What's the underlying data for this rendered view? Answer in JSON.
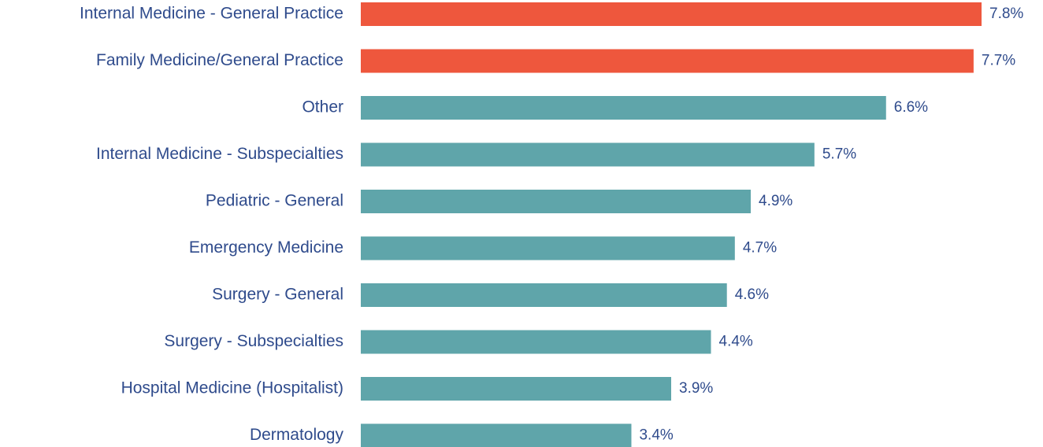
{
  "chart_data": {
    "type": "barh",
    "categories": [
      "Internal Medicine - General Practice",
      "Family Medicine/General Practice",
      "Other",
      "Internal Medicine - Subspecialties",
      "Pediatric - General",
      "Emergency Medicine",
      "Surgery - General",
      "Surgery - Subspecialties",
      "Hospital Medicine (Hospitalist)",
      "Dermatology"
    ],
    "values": [
      7.8,
      7.7,
      6.6,
      5.7,
      4.9,
      4.7,
      4.6,
      4.4,
      3.9,
      3.4
    ],
    "value_labels": [
      "7.8%",
      "7.7%",
      "6.6%",
      "5.7%",
      "4.9%",
      "4.7%",
      "4.6%",
      "4.4%",
      "3.9%",
      "3.4%"
    ],
    "colors": [
      "#ee573d",
      "#ee573d",
      "#5fa5aa",
      "#5fa5aa",
      "#5fa5aa",
      "#5fa5aa",
      "#5fa5aa",
      "#5fa5aa",
      "#5fa5aa",
      "#5fa5aa"
    ]
  }
}
